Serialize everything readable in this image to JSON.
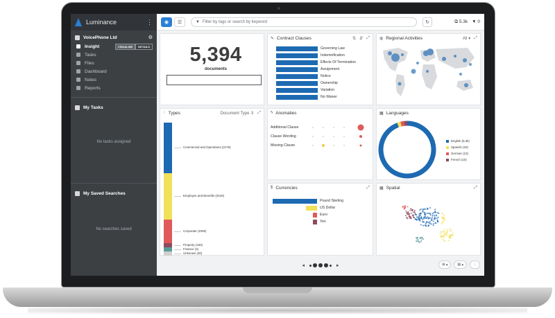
{
  "app": {
    "name": "Luminance",
    "menu_icon": "kebab-icon"
  },
  "sidebar": {
    "account": "VoicePhone Ltd",
    "insight": {
      "label": "Insight",
      "visualise": "VISUALISE",
      "details": "DETAILS"
    },
    "items": [
      {
        "label": "Tasks",
        "icon": "tasks-icon"
      },
      {
        "label": "Files",
        "icon": "files-icon"
      },
      {
        "label": "Dashboard",
        "icon": "dashboard-icon"
      },
      {
        "label": "Notes",
        "icon": "notes-icon"
      },
      {
        "label": "Reports",
        "icon": "reports-icon"
      }
    ],
    "my_tasks": {
      "title": "My Tasks",
      "empty": "No tasks assigned"
    },
    "saved_searches": {
      "title": "My Saved Searches",
      "empty": "No searches saved"
    }
  },
  "topbar": {
    "search_placeholder": "Filter by tags or search by keyword",
    "stat_count": "5.3k",
    "stat_filter": "0"
  },
  "documents": {
    "count": "5,394",
    "label": "documents"
  },
  "contract_clauses": {
    "title": "Contract Clauses",
    "chart_data": {
      "type": "bar",
      "categories": [
        "Governing Law",
        "Indemnification",
        "Effects Of Termination",
        "Assignment",
        "Notice",
        "Ownership",
        "Variation",
        "No Waiver"
      ],
      "values": [
        100,
        100,
        100,
        100,
        100,
        100,
        100,
        100
      ],
      "colors": [
        "#1d6ab2"
      ]
    }
  },
  "regional": {
    "title": "Regional Activities",
    "filter": "All"
  },
  "types": {
    "title": "Types",
    "sort": "Document Type",
    "chart_data": {
      "type": "bar",
      "categories": [
        "Commercial and Operations (2176)",
        "Employee and Benefits (2019)",
        "Corporate (1006)",
        "Property (150)",
        "Finance (4)",
        "Unknown (40)"
      ],
      "values": [
        2176,
        2019,
        1006,
        150,
        4,
        40
      ],
      "colors": [
        "#1d6ab2",
        "#f1e05a",
        "#e05a5a",
        "#8e4b5e",
        "#5a9e98",
        "#d0d0d0"
      ]
    }
  },
  "anomalies": {
    "title": "Anomalies",
    "rows": [
      {
        "label": "Additional Clause"
      },
      {
        "label": "Clause Wording"
      },
      {
        "label": "Missing Clause"
      }
    ]
  },
  "languages": {
    "title": "Languages",
    "chart_data": {
      "type": "pie",
      "categories": [
        "English (5.3k)",
        "Spanish (20)",
        "German (10)",
        "French (10)"
      ],
      "values": [
        5300,
        20,
        10,
        10
      ],
      "colors": [
        "#1d6ab2",
        "#f1e05a",
        "#e05a5a",
        "#8e4b5e"
      ]
    }
  },
  "currencies": {
    "title": "Currencies",
    "chart_data": {
      "type": "bar",
      "categories": [
        "Pound Sterling",
        "US Dollar",
        "Euro",
        "Yen"
      ],
      "values": [
        100,
        25,
        10,
        10
      ],
      "colors": [
        "#1d6ab2",
        "#f1e05a",
        "#e05a5a",
        "#8e4b5e"
      ]
    }
  },
  "spatial": {
    "title": "Spatial"
  }
}
